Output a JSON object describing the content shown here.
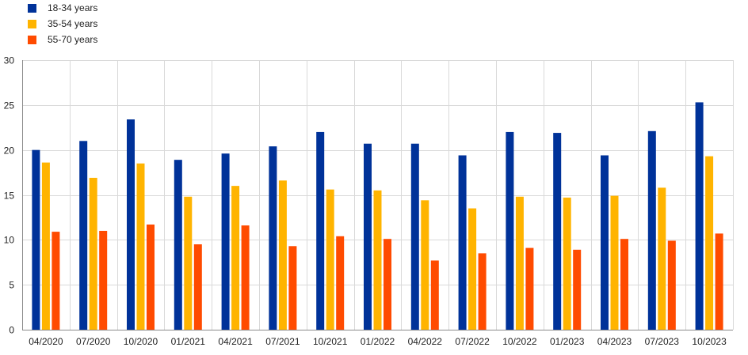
{
  "chart_data": {
    "type": "bar",
    "categories": [
      "04/2020",
      "07/2020",
      "10/2020",
      "01/2021",
      "04/2021",
      "07/2021",
      "10/2021",
      "01/2022",
      "04/2022",
      "07/2022",
      "10/2022",
      "01/2023",
      "04/2023",
      "07/2023",
      "10/2023"
    ],
    "series": [
      {
        "name": "18-34 years",
        "color": "#003299",
        "values": [
          20.0,
          21.0,
          23.4,
          18.9,
          19.6,
          20.4,
          22.0,
          20.7,
          20.7,
          19.4,
          22.0,
          21.9,
          19.4,
          22.1,
          25.3
        ]
      },
      {
        "name": "35-54 years",
        "color": "#ffb400",
        "values": [
          18.6,
          16.9,
          18.5,
          14.8,
          16.0,
          16.6,
          15.6,
          15.5,
          14.4,
          13.5,
          14.8,
          14.7,
          14.9,
          15.8,
          19.3
        ]
      },
      {
        "name": "55-70 years",
        "color": "#ff4b00",
        "values": [
          10.9,
          11.0,
          11.7,
          9.5,
          11.6,
          9.3,
          10.4,
          10.1,
          7.7,
          8.5,
          9.1,
          8.9,
          10.1,
          9.9,
          10.7
        ]
      }
    ],
    "ylim": [
      0,
      30
    ],
    "yticks": [
      0,
      5,
      10,
      15,
      20,
      25,
      30
    ],
    "grid": true,
    "legend_position": "top-left",
    "title": "",
    "xlabel": "",
    "ylabel": ""
  }
}
